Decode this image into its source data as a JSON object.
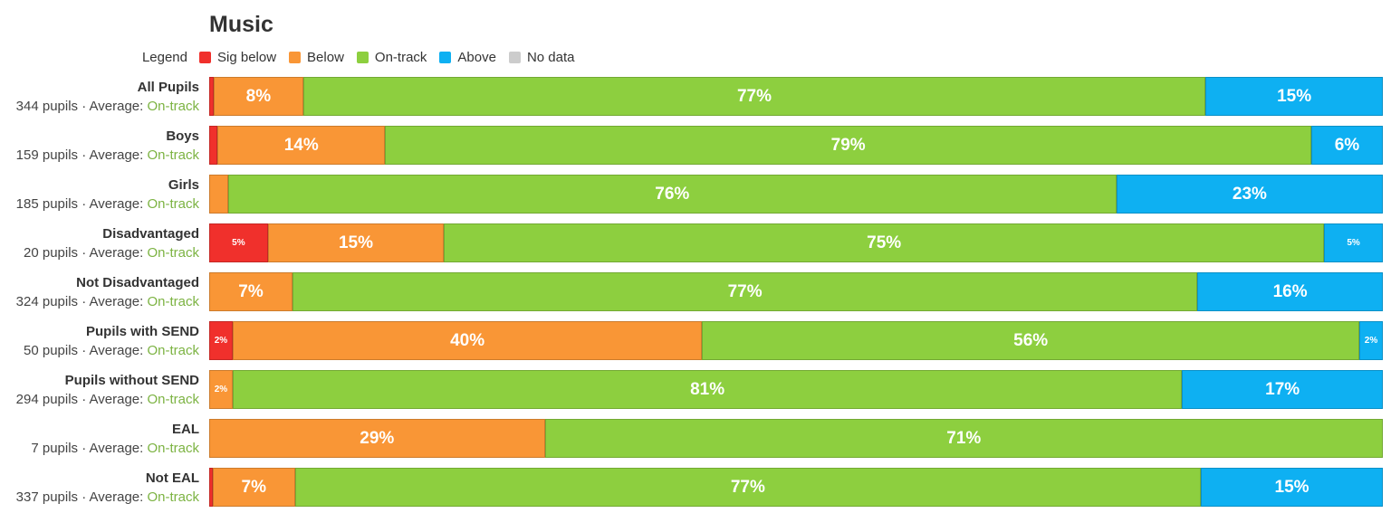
{
  "chart_data": {
    "type": "bar",
    "orientation": "horizontal-stacked-100",
    "title": "Music",
    "legend_title": "Legend",
    "legend_placement": "top-left",
    "series": [
      {
        "name": "Sig below",
        "color": "#f0302c"
      },
      {
        "name": "Below",
        "color": "#f99636"
      },
      {
        "name": "On-track",
        "color": "#8dcf3f"
      },
      {
        "name": "Above",
        "color": "#0eb0f2"
      },
      {
        "name": "No data",
        "color": "#cccccc"
      }
    ],
    "rows": [
      {
        "group": "All Pupils",
        "subtitle": "344 pupils · Average: ",
        "average": "On-track",
        "values": [
          0.4,
          7.6,
          76.9,
          15.1,
          0
        ],
        "labels": [
          "",
          "8%",
          "77%",
          "15%",
          ""
        ]
      },
      {
        "group": "Boys",
        "subtitle": "159 pupils · Average: ",
        "average": "On-track",
        "values": [
          0.7,
          14.3,
          78.9,
          6.1,
          0
        ],
        "labels": [
          "",
          "14%",
          "79%",
          "6%",
          ""
        ]
      },
      {
        "group": "Girls",
        "subtitle": "185 pupils · Average: ",
        "average": "On-track",
        "values": [
          0,
          1.6,
          75.7,
          22.7,
          0
        ],
        "labels": [
          "",
          "",
          "76%",
          "23%",
          ""
        ]
      },
      {
        "group": "Disadvantaged",
        "subtitle": "20 pupils · Average: ",
        "average": "On-track",
        "values": [
          5,
          15,
          75,
          5,
          0
        ],
        "labels": [
          "5%",
          "15%",
          "75%",
          "5%",
          ""
        ]
      },
      {
        "group": "Not Disadvantaged",
        "subtitle": "324 pupils · Average: ",
        "average": "On-track",
        "values": [
          0,
          7.1,
          77.1,
          15.8,
          0
        ],
        "labels": [
          "",
          "7%",
          "77%",
          "16%",
          ""
        ]
      },
      {
        "group": "Pupils with SEND",
        "subtitle": "50 pupils · Average: ",
        "average": "On-track",
        "values": [
          2,
          40,
          56,
          2,
          0
        ],
        "labels": [
          "2%",
          "40%",
          "56%",
          "2%",
          ""
        ]
      },
      {
        "group": "Pupils without SEND",
        "subtitle": "294 pupils · Average: ",
        "average": "On-track",
        "values": [
          0,
          2,
          80.9,
          17.1,
          0
        ],
        "labels": [
          "",
          "2%",
          "81%",
          "17%",
          ""
        ]
      },
      {
        "group": "EAL",
        "subtitle": "7 pupils · Average: ",
        "average": "On-track",
        "values": [
          0,
          28.6,
          71.4,
          0,
          0
        ],
        "labels": [
          "",
          "29%",
          "71%",
          "",
          ""
        ]
      },
      {
        "group": "Not EAL",
        "subtitle": "337 pupils · Average: ",
        "average": "On-track",
        "values": [
          0.3,
          7,
          77.2,
          15.5,
          0
        ],
        "labels": [
          "",
          "7%",
          "77%",
          "15%",
          ""
        ]
      }
    ]
  }
}
